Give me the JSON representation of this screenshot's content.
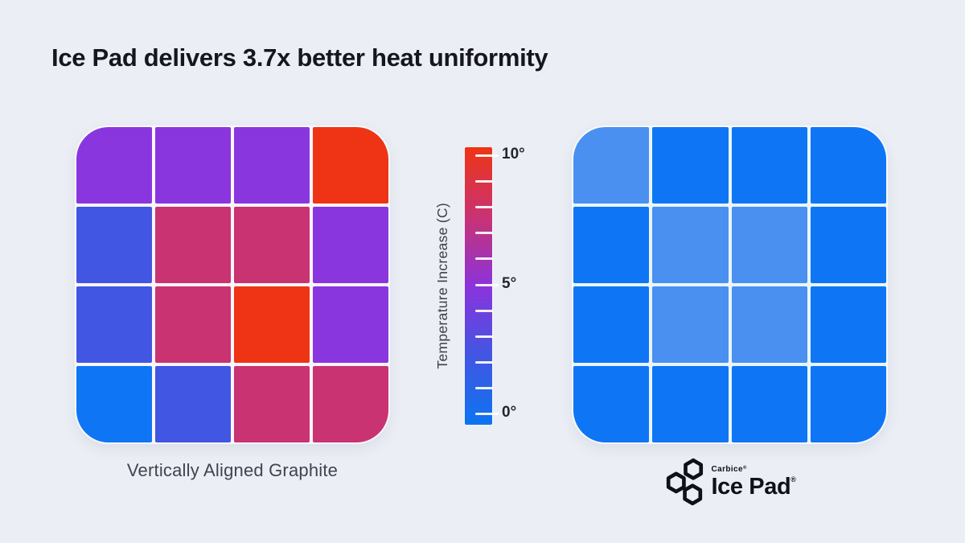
{
  "title": "Ice Pad delivers 3.7x better heat uniformity",
  "colors": {
    "background": "#ebeef4",
    "title_text": "#16161f",
    "caption_text": "#3f4450",
    "tick_label_text": "#23262e",
    "grid_gap_left": "#faf5fa",
    "grid_gap_right": "#e9f5fb",
    "logo_ink": "#0e1118",
    "heat_red": "#ee3414",
    "heat_crimson": "#c93372",
    "heat_purple": "#8a36df",
    "heat_indigo": "#4156e2",
    "heat_blue": "#0e76f5",
    "heat_light_blue": "#4a90f0"
  },
  "chart_data": {
    "type": "heatmap",
    "title": "Ice Pad delivers 3.7x better heat uniformity",
    "legend_position": "center-between-panels",
    "colorbar": {
      "label": "Temperature Increase (C)",
      "min": 0,
      "max": 10,
      "tick_count": 11,
      "minor_tick_step": 1,
      "major_ticks": [
        {
          "value": 10,
          "label": "10°"
        },
        {
          "value": 5,
          "label": "5°"
        },
        {
          "value": 0,
          "label": "0°"
        }
      ],
      "gradient_stops": [
        {
          "pos": 0,
          "color": "#0d74f2"
        },
        {
          "pos": 25,
          "color": "#4156e2"
        },
        {
          "pos": 50,
          "color": "#8b33dc"
        },
        {
          "pos": 75,
          "color": "#c93372"
        },
        {
          "pos": 100,
          "color": "#ee3414"
        }
      ]
    },
    "panels": [
      {
        "id": "vertically-aligned-graphite",
        "caption": "Vertically Aligned Graphite",
        "rows": 4,
        "cols": 4,
        "values_c": [
          [
            5.5,
            5.5,
            5.5,
            10
          ],
          [
            2.5,
            7.5,
            7.5,
            5.5
          ],
          [
            2.5,
            7.5,
            10,
            5.5
          ],
          [
            0.5,
            2.5,
            7.5,
            7.5
          ]
        ],
        "cell_colors": [
          [
            "#8a36df",
            "#8a36df",
            "#8a36df",
            "#ee3414"
          ],
          [
            "#4156e2",
            "#c93372",
            "#c93372",
            "#8a36df"
          ],
          [
            "#4156e2",
            "#c93372",
            "#ee3414",
            "#8a36df"
          ],
          [
            "#0e76f5",
            "#4156e2",
            "#c93372",
            "#c93372"
          ]
        ]
      },
      {
        "id": "ice-pad",
        "caption": "Ice Pad",
        "rows": 4,
        "cols": 4,
        "values_c": [
          [
            1.5,
            0.5,
            0.5,
            0.5
          ],
          [
            0.5,
            1.5,
            1.5,
            0.5
          ],
          [
            0.5,
            1.5,
            1.5,
            0.5
          ],
          [
            0.5,
            0.5,
            0.5,
            0.5
          ]
        ],
        "cell_colors": [
          [
            "#4a90f0",
            "#0e76f5",
            "#0e76f5",
            "#0e76f5"
          ],
          [
            "#0e76f5",
            "#4a90f0",
            "#4a90f0",
            "#0e76f5"
          ],
          [
            "#0e76f5",
            "#4a90f0",
            "#4a90f0",
            "#0e76f5"
          ],
          [
            "#0e76f5",
            "#0e76f5",
            "#0e76f5",
            "#0e76f5"
          ]
        ]
      }
    ]
  },
  "logo": {
    "brand": "Carbice",
    "brand_mark": "®",
    "product": "Ice Pad",
    "product_mark": "®"
  }
}
